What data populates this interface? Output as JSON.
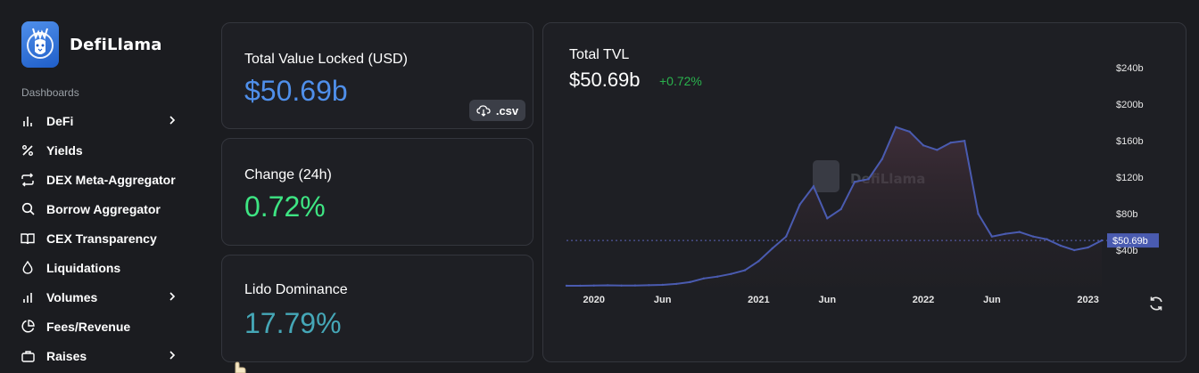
{
  "brand": {
    "name": "DefiLlama"
  },
  "sidebar": {
    "section_label": "Dashboards",
    "items": [
      {
        "label": "DeFi",
        "icon": "bar-chart-icon",
        "has_chevron": true
      },
      {
        "label": "Yields",
        "icon": "percent-icon",
        "has_chevron": false
      },
      {
        "label": "DEX Meta-Aggregator",
        "icon": "repeat-icon",
        "has_chevron": false
      },
      {
        "label": "Borrow Aggregator",
        "icon": "search-icon",
        "has_chevron": false
      },
      {
        "label": "CEX Transparency",
        "icon": "book-open-icon",
        "has_chevron": false
      },
      {
        "label": "Liquidations",
        "icon": "droplet-icon",
        "has_chevron": false
      },
      {
        "label": "Volumes",
        "icon": "bar-chart-icon",
        "has_chevron": true
      },
      {
        "label": "Fees/Revenue",
        "icon": "pie-chart-icon",
        "has_chevron": false
      },
      {
        "label": "Raises",
        "icon": "briefcase-icon",
        "has_chevron": true
      }
    ]
  },
  "stats": {
    "tvl": {
      "label": "Total Value Locked (USD)",
      "value": "$50.69b",
      "color": "#4f8fea"
    },
    "change": {
      "label": "Change (24h)",
      "value": "0.72%",
      "color": "#3ee583"
    },
    "dominance": {
      "label": "Lido Dominance",
      "value": "17.79%",
      "color": "#45a7b7"
    },
    "csv_label": ".csv"
  },
  "chart": {
    "title": "Total TVL",
    "value": "$50.69b",
    "change": "+0.72%",
    "watermark": "DefiLlama",
    "current_label": "$50.69b",
    "line_color": "#4a5bb0"
  },
  "chart_data": {
    "type": "area",
    "title": "Total TVL",
    "xlabel": "",
    "ylabel": "",
    "x_ticks": [
      "2020",
      "Jun",
      "2021",
      "Jun",
      "2022",
      "Jun",
      "2023"
    ],
    "y_ticks": [
      "$40b",
      "$80b",
      "$120b",
      "$160b",
      "$200b",
      "$240b"
    ],
    "ylim": [
      0,
      250
    ],
    "unit": "billion USD",
    "grid": false,
    "current_value": 50.69,
    "x": [
      "2019-11",
      "2019-12",
      "2020-01",
      "2020-02",
      "2020-03",
      "2020-04",
      "2020-05",
      "2020-06",
      "2020-07",
      "2020-08",
      "2020-09",
      "2020-10",
      "2020-11",
      "2020-12",
      "2021-01",
      "2021-02",
      "2021-03",
      "2021-04",
      "2021-05",
      "2021-06",
      "2021-07",
      "2021-08",
      "2021-09",
      "2021-10",
      "2021-11",
      "2021-12",
      "2022-01",
      "2022-02",
      "2022-03",
      "2022-04",
      "2022-05",
      "2022-06",
      "2022-07",
      "2022-08",
      "2022-09",
      "2022-10",
      "2022-11",
      "2022-12",
      "2023-01",
      "2023-02"
    ],
    "series": [
      {
        "values": [
          1.0,
          1.0,
          1.2,
          1.5,
          1.2,
          1.3,
          1.6,
          2.0,
          3.0,
          5.0,
          9.0,
          11.0,
          14.0,
          18.0,
          28.0,
          42.0,
          55.0,
          90.0,
          110.0,
          75.0,
          85.0,
          115.0,
          118.0,
          140.0,
          175.0,
          170.0,
          155.0,
          150.0,
          158.0,
          160.0,
          80.0,
          55.0,
          58.0,
          60.0,
          55.0,
          52.0,
          45.0,
          40.0,
          43.0,
          50.69
        ]
      }
    ]
  }
}
